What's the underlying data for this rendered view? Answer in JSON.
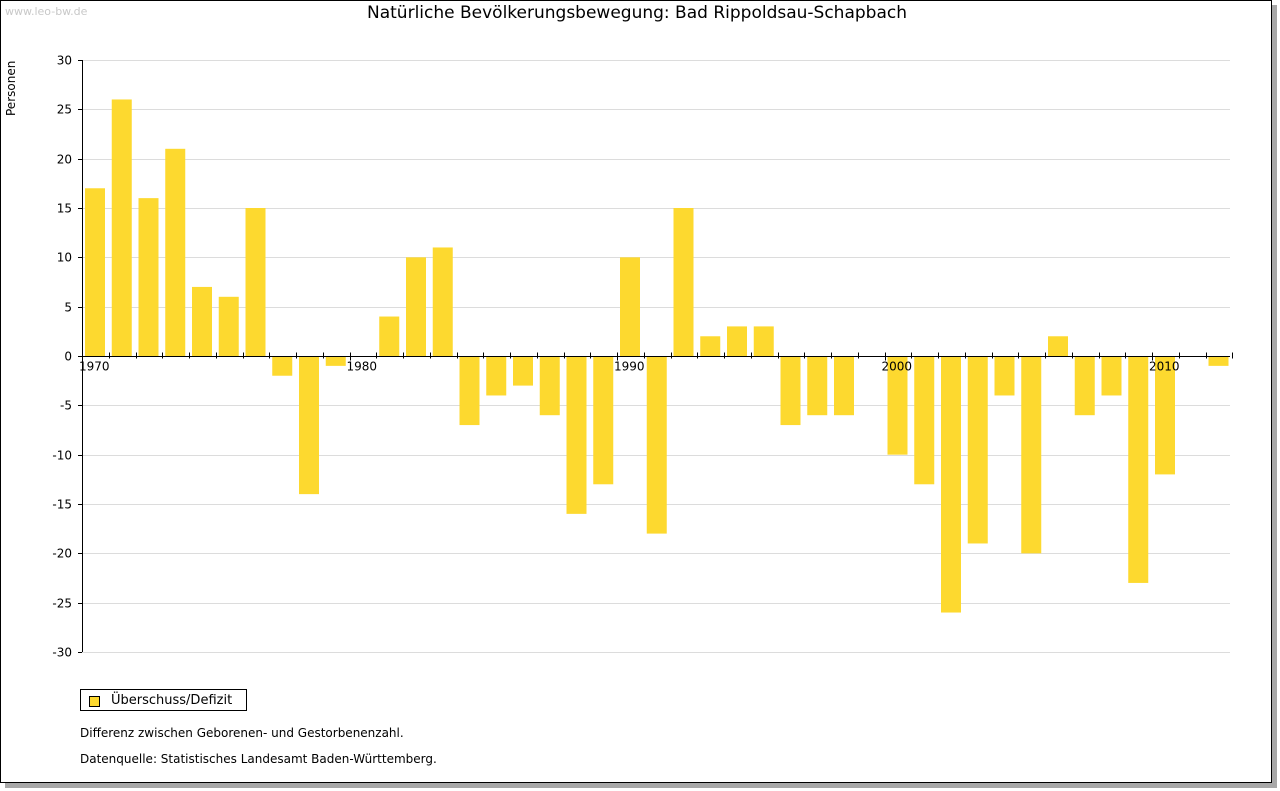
{
  "watermark": "www.leo-bw.de",
  "legend": {
    "label": "Überschuss/Defizit"
  },
  "notes": {
    "line1": "Differenz zwischen Geborenen- und Gestorbenenzahl.",
    "line2": "Datenquelle: Statistisches Landesamt Baden-Württemberg."
  },
  "colors": {
    "bar": "#fdd92f",
    "grid": "#dcdcdc",
    "axis": "#000000"
  },
  "chart_data": {
    "type": "bar",
    "title": "Natürliche Bevölkerungsbewegung: Bad Rippoldsau-Schapbach",
    "xlabel": "",
    "ylabel": "Personen",
    "ylim": [
      -30,
      30
    ],
    "yticks": [
      30,
      25,
      20,
      15,
      10,
      5,
      0,
      -5,
      -10,
      -15,
      -20,
      -25,
      -30
    ],
    "xticks": [
      "1970",
      "1980",
      "1990",
      "2000",
      "2010"
    ],
    "grid": true,
    "legend_position": "bottom-left",
    "series": [
      {
        "name": "Überschuss/Defizit",
        "x": [
          1970,
          1971,
          1972,
          1973,
          1974,
          1975,
          1976,
          1977,
          1978,
          1979,
          1980,
          1981,
          1982,
          1983,
          1984,
          1985,
          1986,
          1987,
          1988,
          1989,
          1990,
          1991,
          1992,
          1993,
          1994,
          1995,
          1996,
          1997,
          1998,
          1999,
          2000,
          2001,
          2002,
          2003,
          2004,
          2005,
          2006,
          2007,
          2008,
          2009,
          2010,
          2011,
          2012
        ],
        "values": [
          17,
          26,
          16,
          21,
          7,
          6,
          15,
          -2,
          -14,
          -1,
          0,
          4,
          10,
          11,
          -7,
          -4,
          -3,
          -6,
          -16,
          -13,
          10,
          -18,
          15,
          2,
          3,
          3,
          -7,
          -6,
          -6,
          0,
          -10,
          -13,
          -26,
          -19,
          -4,
          -20,
          2,
          -6,
          -4,
          -23,
          -12,
          0,
          -1
        ]
      }
    ]
  }
}
